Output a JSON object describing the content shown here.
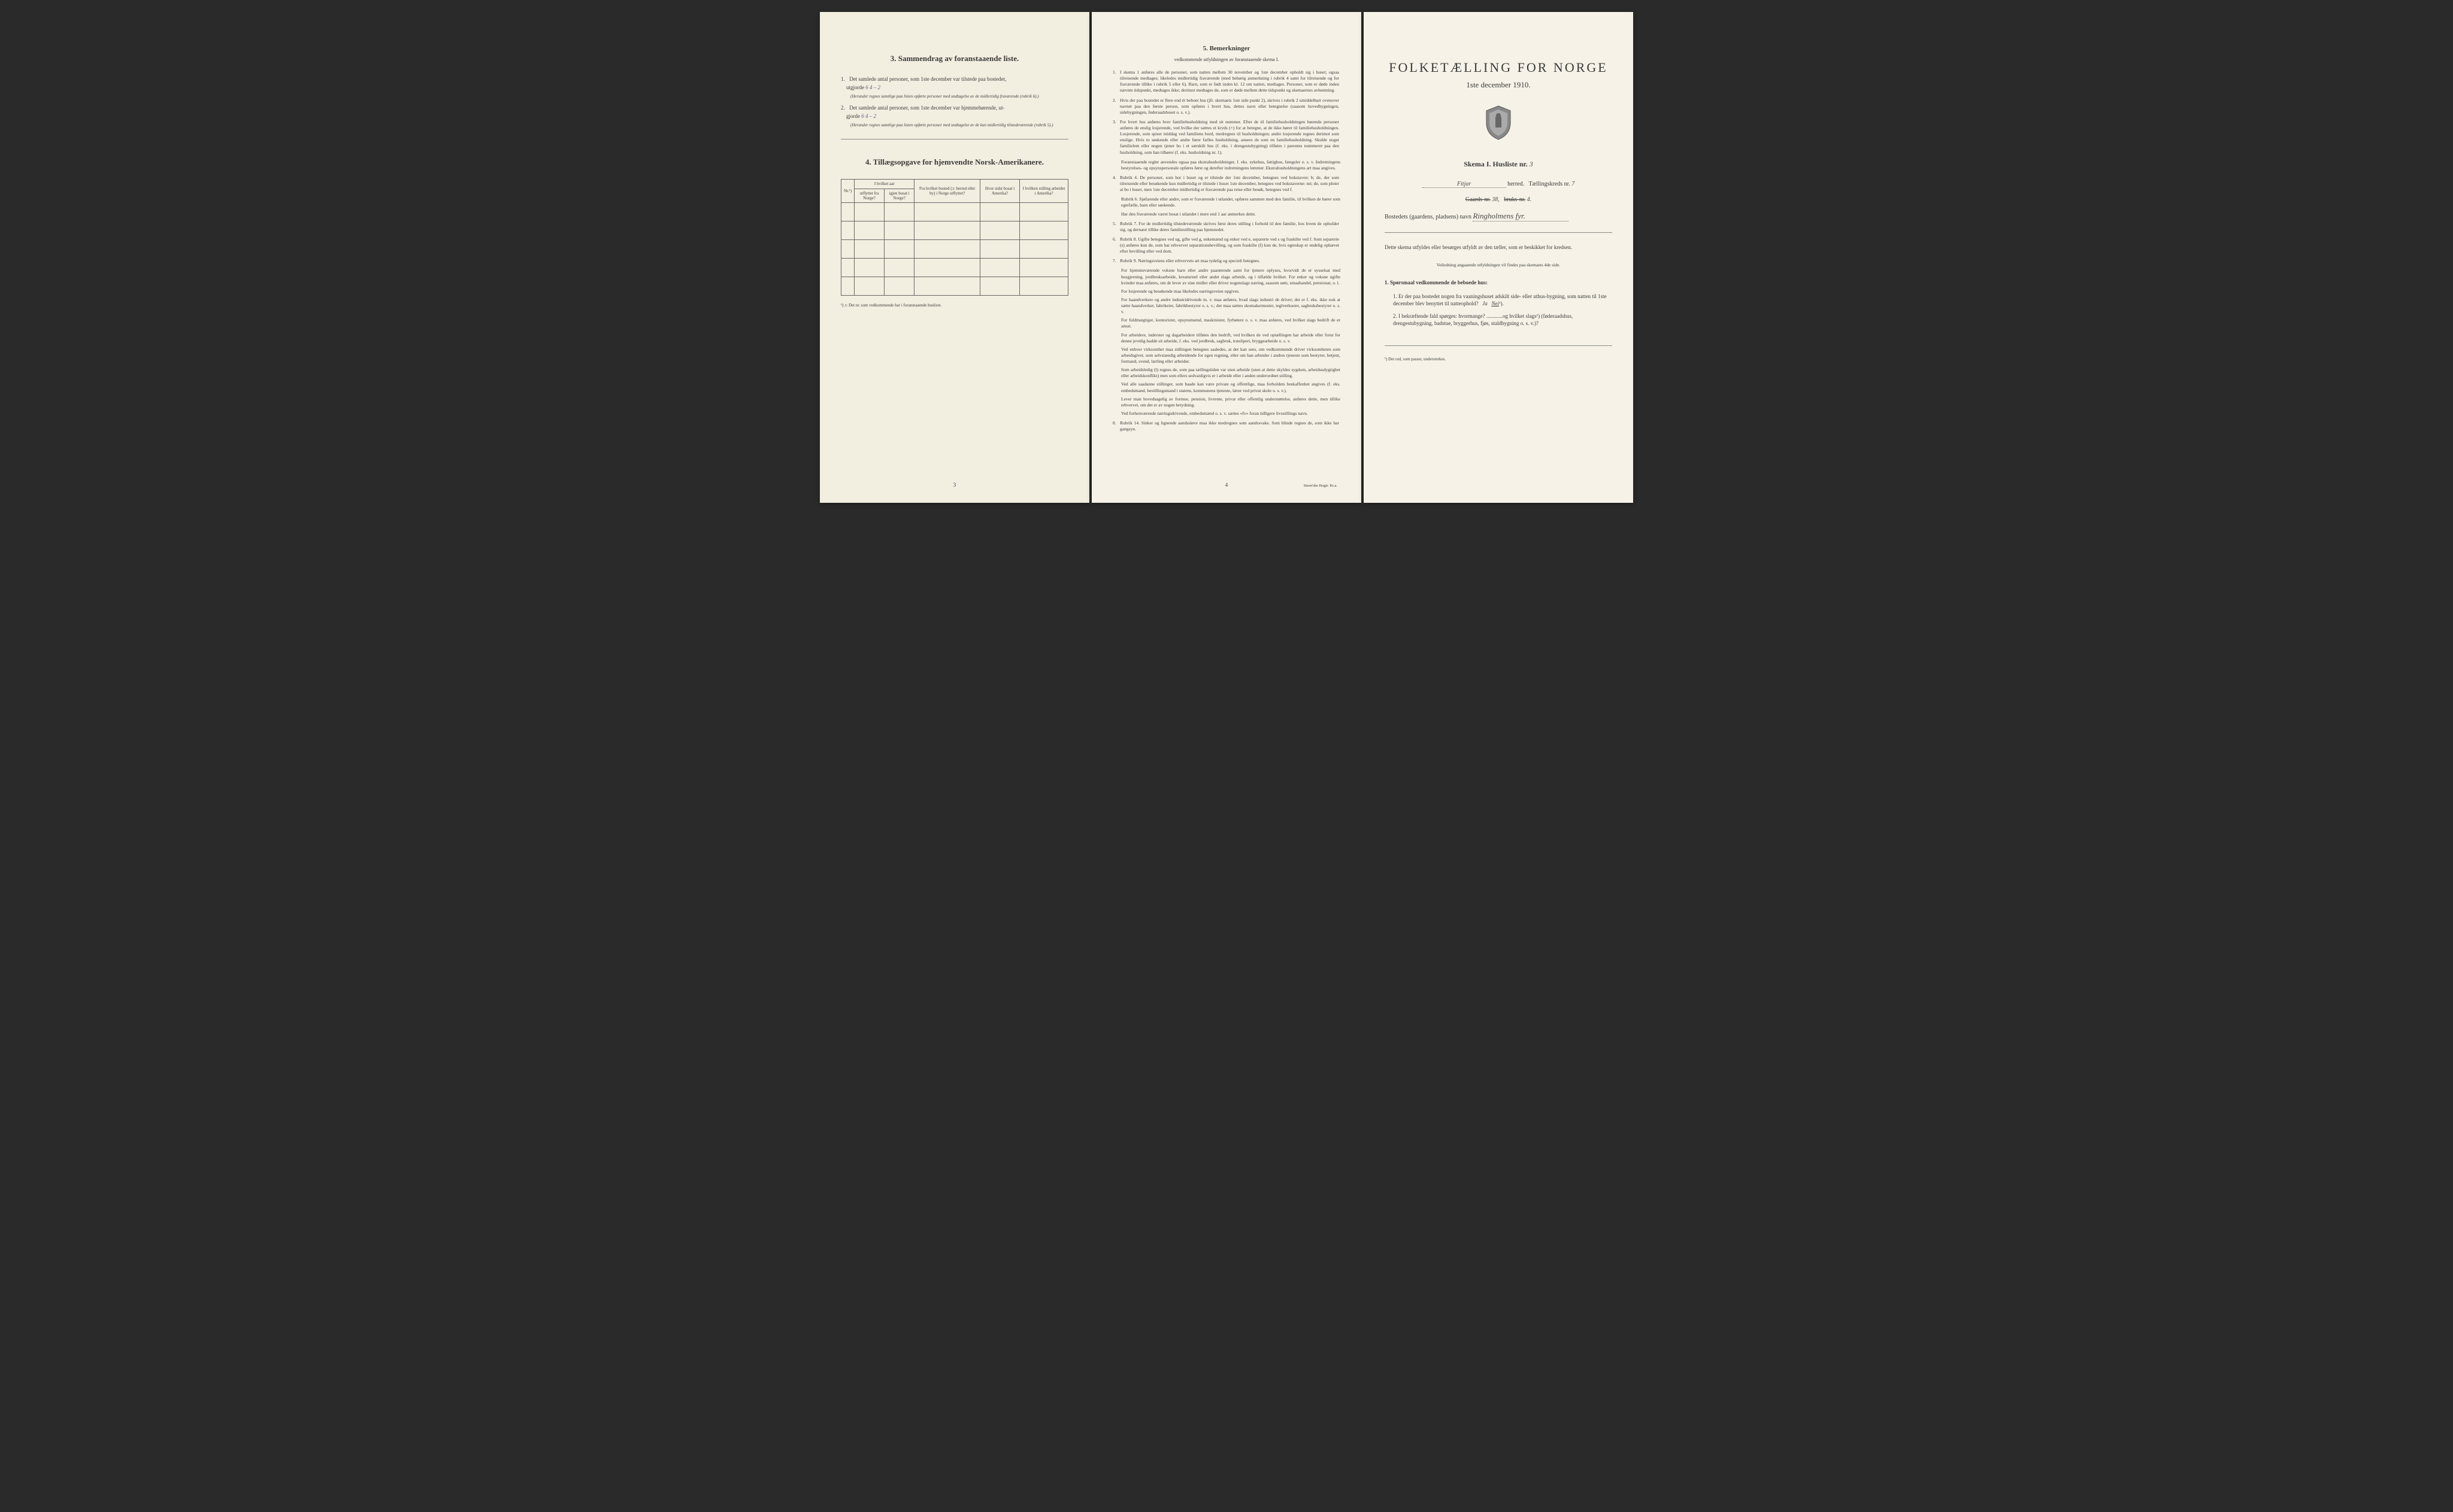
{
  "colors": {
    "paper_bg": "#f4f0e4",
    "text": "#3a3a3a",
    "handwriting": "#6a5a8a",
    "border": "#666666"
  },
  "page1": {
    "section3_title": "3.   Sammendrag av foranstaaende liste.",
    "item1_prefix": "1.",
    "item1_text": "Det samlede antal personer, som 1ste december var tilstede paa bostedet,",
    "item1_line2": "utgjorde",
    "item1_value": "6           4 – 2",
    "item1_note": "(Herunder regnes samtlige paa listen opførte personer med undtagelse av de midlertidig fraværende (rubrik 6).)",
    "item2_prefix": "2.",
    "item2_text": "Det samlede antal personer, som 1ste december var hjemmehørende, ut-",
    "item2_line2": "gjorde",
    "item2_value": "6           4 – 2",
    "item2_note": "(Herunder regnes samtlige paa listen opførte personer med undtagelse av de kun midlertidig tilstedeværende (rubrik 5).)",
    "section4_title": "4.   Tillægsopgave for hjemvendte Norsk-Amerikanere.",
    "table_headers": {
      "col0": "Nr.¹)",
      "col1a": "I hvilket aar",
      "col1b_left": "utflyttet fra Norge?",
      "col1b_right": "igjen bosat i Norge?",
      "col2": "Fra hvilket bosted (ɔ: herred eller by) i Norge utflyttet?",
      "col3": "Hvor sidst bosat i Amerika?",
      "col4": "I hvilken stilling arbeidet i Amerika?"
    },
    "table_rows": 5,
    "footnote": "¹) ɔ: Det nr. som vedkommende har i foranstaaende husliste.",
    "page_number": "3"
  },
  "page2": {
    "title": "5.   Bemerkninger",
    "subtitle": "vedkommende utfyldningen av foranstaaende skema I.",
    "items": [
      {
        "num": "1.",
        "text": "I skema 1 anføres alle de personer, som natten mellem 30 november og 1ste december opholdt sig i huset; ogsaa tilreisende medtages; likeledes midlertidig fraværende (med behørig anmerkning i rubrik 4 samt for tilreisende og for fraværende tillike i rubrik 5 eller 6). Barn, som er født inden kl. 12 om natten, medtages. Personer, som er døde inden nævnte tidspunkt, medtages ikke; derimot medtages de, som er døde mellem dette tidspunkt og skemaernes avhentning."
      },
      {
        "num": "2.",
        "text": "Hvis der paa bostedet er flere end ét beboet hus (jfr. skemaets 1ste side punkt 2), skrives i rubrik 2 umiddelbart ovenover navnet paa den første person, som opføres i hvert hus, dettes navn eller betegnelse (saasom hovedbygningen, sidebygningen, føderaadshuset o. s. v.)."
      },
      {
        "num": "3.",
        "text": "For hvert hus anføres hver familiehusholdning med sit nummer. Efter de til familiehusholdningen hørende personer anføres de enslig losjerende, ved hvilke der sættes et kryds (×) for at betegne, at de ikke hører til familiehusholdningen. Losjerende, som spiser middag ved familiens bord, medregnes til husholdningen; andre losjerende regnes derimot som enslige. Hvis to søskende eller andre fører fælles husholdning, ansees de som en familiehusholdning. Skulde noget familielem eller nogen tjener bo i et særskilt hus (f. eks. i drengestubygning) tilføies i parentes nummeret paa den husholdning, som han tilhører (f. eks. husholdning nr. 1)."
      },
      {
        "num": "",
        "text": "Foranstaaende regler anvendes ogsaa paa ekstrahusholdninger, f. eks. sykehus, fattighus, fængsler o. s. v. Indretningens bestyrelses- og opsynspersonale opføres først og derefter indretningens lemmer. Ekstrahusholdningens art maa angives."
      },
      {
        "num": "4.",
        "text": "Rubrik 4. De personer, som bor i huset og er tilstede der 1ste december, betegnes ved bokstaven: b; de, der som tilreisende eller besøkende kun midlertidig er tilstede i huset 1ste december, betegnes ved bokstaverne: mt; de, som pleier at bo i huset, men 1ste december midlertidig er fraværende paa reise eller besøk, betegnes ved f."
      },
      {
        "num": "",
        "text": "Rubrik 6. Sjøfarende eller andre, som er fraværende i utlandet, opføres sammen med den familie, til hvilken de hører som egtefælle, barn eller søskende."
      },
      {
        "num": "",
        "text": "Har den fraværende været bosat i utlandet i mere end 1 aar anmerkes dette."
      },
      {
        "num": "5.",
        "text": "Rubrik 7. For de midlertidig tilstedeværende skrives først deres stilling i forhold til den familie, hos hvem de opholder sig, og dernæst tillike deres familiestilling paa hjemstedet."
      },
      {
        "num": "6.",
        "text": "Rubrik 8. Ugifte betegnes ved ug, gifte ved g, enkemænd og enker ved e, separerte ved s og fraskilte ved f. Som separerte (s) anføres kun de, som har erhvervet separationsbevilling, og som fraskilte (f) kun de, hvis egteskap er endelig ophævet efter bevilling eller ved dom."
      },
      {
        "num": "7.",
        "text": "Rubrik 9. Næringsveiens eller erhvervets art maa tydelig og specielt betegnes."
      },
      {
        "num": "",
        "text": "For hjemmeværende voksne barn eller andre paarørende samt for tjenere oplyses, hvorvidt de er sysselsat med husgjerning, jordbruksarbeide, kreaturstel eller andet slags arbeide, og i tilfælde hvilket. For enker og voksne ugifte kvinder maa anføres, om de lever av sine midler eller driver nogenslags næring, saasom søm, smaahandel, pensionat, o. l."
      },
      {
        "num": "",
        "text": "For losjerende og besøkende maa likeledes næringsveien opgives."
      },
      {
        "num": "",
        "text": "For haandverkere og andre industridrivende m. v. maa anføres, hvad slags industri de driver; det er f. eks. ikke nok at sætte haandverker, fabrikeier, fabrikbestyrer o. s. v.; der maa sættes skomakermester, teglverkseier, sagbruksbestyrer o. s. v."
      },
      {
        "num": "",
        "text": "For fuldmægtiger, kontorister, opsynsmænd, maskinister, fyrbøtere o. s. v. maa anføres, ved hvilket slags bedrift de er ansat."
      },
      {
        "num": "",
        "text": "For arbeidere, inderster og dagarbeidere tilføies den bedrift, ved hvilken de ved optællingen har arbeide eller forut for denne jevnlig hadde sit arbeide, f. eks. ved jordbruk, sagbruk, træsliperi, bryggearbeide o. s. v."
      },
      {
        "num": "",
        "text": "Ved enhver virksomhet maa stillingen betegnes saaledes, at det kan sees, om vedkommende driver virksomheten som arbeidsgiver, som selvstændig arbeidende for egen regning, eller om han arbeider i andres tjeneste som bestyrer, betjent, formand, svend, lærling eller arbeider."
      },
      {
        "num": "",
        "text": "Som arbeidsledig (l) regnes de, som paa tællingstiden var uten arbeide (uten at dette skyldes sygdom, arbeidsudygtighet eller arbeidskonflikt) men som ellers sedvanligvis er i arbeide eller i anden underordnet stilling."
      },
      {
        "num": "",
        "text": "Ved alle saadanne stillinger, som baade kan være private og offentlige, maa forholdets beskaffenhet angives (f. eks. embedsmand, bestillingsmand i statens, kommunens tjeneste, lærer ved privat skole o. s. v.)."
      },
      {
        "num": "",
        "text": "Lever man hovedsagelig av formue, pension, livrente, privat eller offentlig understøttelse, anføres dette, men tillike erhvervet, om det er av nogen betydning."
      },
      {
        "num": "",
        "text": "Ved forhenværende næringsdrivende, embedsmænd o. s. v. sættes «fv» foran tidligere livsstillings navn."
      },
      {
        "num": "8.",
        "text": "Rubrik 14. Sinker og lignende aandssløve maa ikke medregnes som aandssvake. Som blinde regnes de, som ikke har gangsyn."
      }
    ],
    "page_number": "4",
    "printer": "Steen'ske Bogtr.  Kr.a."
  },
  "page3": {
    "main_title": "FOLKETÆLLING FOR NORGE",
    "date_line": "1ste december 1910.",
    "skema_label": "Skema I.   Husliste nr.",
    "husliste_nr": "3",
    "herred_value": "Fitjar",
    "herred_label": "herred.",
    "taellingskreds_label": "Tællingskreds nr.",
    "taellingskreds_nr": "7",
    "gaards_label": "Gaards-nr.",
    "gaards_nr": "38",
    "bruks_label": "bruks-nr.",
    "bruks_nr": "4",
    "bosted_label": "Bostedets (gaardens, pladsens) navn",
    "bosted_value": "Ringholmens fyr.",
    "instruction_text": "Dette skema utfyldes eller besørges utfyldt av den tæller, som er beskikket for kredsen.",
    "veiledning": "Veiledning angaaende utfyldningen vil findes paa skemaets 4de side.",
    "sporsmaal_title": "1. Spørsmaal vedkommende de beboede hus:",
    "q1_num": "1.",
    "q1_text": "Er der paa bostedet nogen fra vaaningshuset adskilt side- eller uthus-bygning, som natten til 1ste december blev benyttet til natteophold?",
    "q1_ja": "Ja",
    "q1_nei": "Nei",
    "q1_sup": "¹).",
    "q2_num": "2.",
    "q2_text": "I bekræftende fald spørges: hvormange? ............og hvilket slags¹) (føderaadshus, drengestubygning, badstue, bryggerhus, fjøs, staldbygning o. s. v.)?",
    "footnote": "¹) Det ord, som passer, understrekes."
  }
}
